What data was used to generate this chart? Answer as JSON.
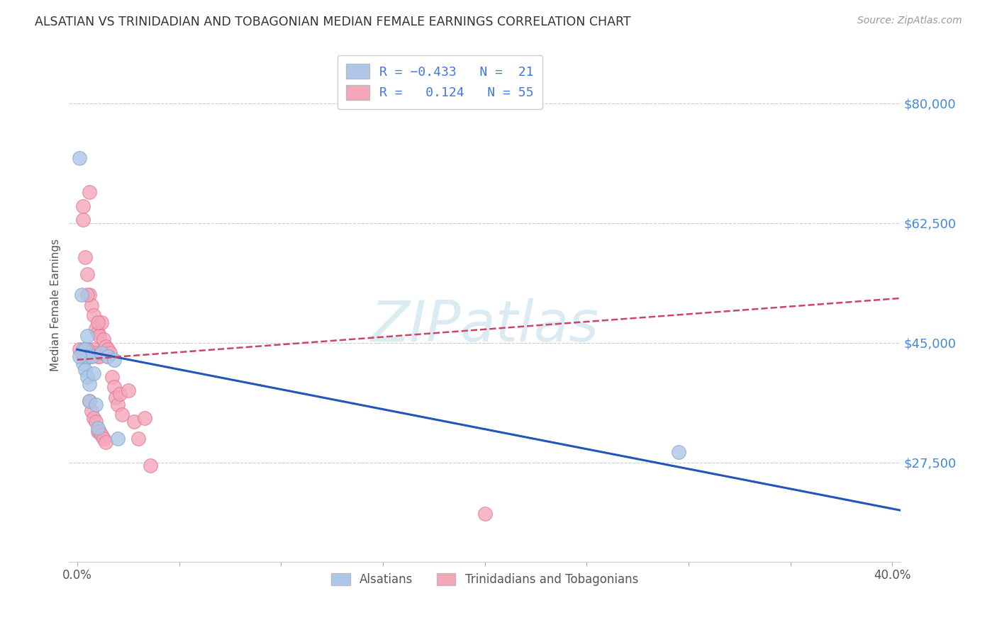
{
  "title": "ALSATIAN VS TRINIDADIAN AND TOBAGONIAN MEDIAN FEMALE EARNINGS CORRELATION CHART",
  "source": "Source: ZipAtlas.com",
  "ylabel": "Median Female Earnings",
  "xlim": [
    -0.004,
    0.404
  ],
  "ylim": [
    13000,
    88000
  ],
  "xticks": [
    0.0,
    0.05,
    0.1,
    0.15,
    0.2,
    0.25,
    0.3,
    0.35,
    0.4
  ],
  "xticklabels": [
    "0.0%",
    "",
    "",
    "",
    "",
    "",
    "",
    "",
    "40.0%"
  ],
  "ytick_positions": [
    27500,
    45000,
    62500,
    80000
  ],
  "ytick_labels": [
    "$27,500",
    "$45,000",
    "$62,500",
    "$80,000"
  ],
  "watermark": "ZIPatlas",
  "alsatian_color": "#aec6e8",
  "alsatian_edge": "#80aad0",
  "trinidadian_color": "#f4a7b9",
  "trinidadian_edge": "#e07898",
  "alsatian_line_color": "#2255bb",
  "trinidadian_line_color": "#cc4466",
  "background_color": "#ffffff",
  "grid_color": "#cccccc",
  "alsatian_x": [
    0.001,
    0.002,
    0.003,
    0.003,
    0.004,
    0.004,
    0.005,
    0.005,
    0.005,
    0.006,
    0.006,
    0.007,
    0.008,
    0.009,
    0.01,
    0.012,
    0.015,
    0.018,
    0.02,
    0.295,
    0.001
  ],
  "alsatian_y": [
    72000,
    52000,
    44000,
    42000,
    44000,
    41000,
    46000,
    43000,
    40000,
    39000,
    36500,
    43000,
    40500,
    36000,
    32500,
    43500,
    43000,
    42500,
    31000,
    29000,
    43000
  ],
  "trinidadian_x": [
    0.001,
    0.002,
    0.003,
    0.003,
    0.004,
    0.004,
    0.005,
    0.005,
    0.006,
    0.006,
    0.007,
    0.007,
    0.008,
    0.008,
    0.009,
    0.009,
    0.01,
    0.01,
    0.011,
    0.011,
    0.012,
    0.012,
    0.013,
    0.014,
    0.015,
    0.015,
    0.016,
    0.017,
    0.018,
    0.019,
    0.02,
    0.021,
    0.022,
    0.025,
    0.028,
    0.03,
    0.033,
    0.036,
    0.004,
    0.005,
    0.006,
    0.007,
    0.008,
    0.009,
    0.01,
    0.011,
    0.012,
    0.013,
    0.014,
    0.2,
    0.006,
    0.003,
    0.005,
    0.01
  ],
  "trinidadian_y": [
    44000,
    43500,
    65000,
    43000,
    57500,
    44000,
    55000,
    44000,
    52000,
    43000,
    50500,
    43000,
    49000,
    44000,
    47000,
    43500,
    46500,
    43000,
    46000,
    43000,
    48000,
    43500,
    45500,
    44500,
    44000,
    43000,
    43500,
    40000,
    38500,
    37000,
    36000,
    37500,
    34500,
    38000,
    33500,
    31000,
    34000,
    27000,
    43000,
    44000,
    36500,
    35000,
    34000,
    33500,
    32000,
    32000,
    31500,
    31000,
    30500,
    20000,
    67000,
    63000,
    52000,
    48000
  ],
  "tri_line_x0": 0.0,
  "tri_line_x1": 0.404,
  "tri_line_y0": 42500,
  "tri_line_y1": 51500,
  "als_line_x0": 0.0,
  "als_line_x1": 0.404,
  "als_line_y0": 44000,
  "als_line_y1": 20500
}
